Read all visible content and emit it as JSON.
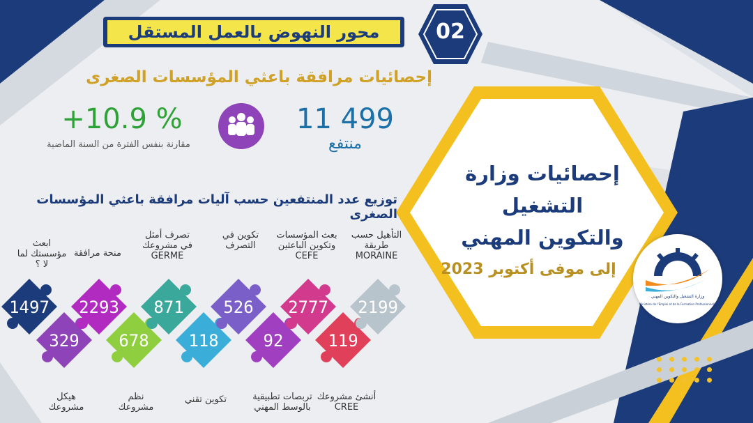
{
  "badge": "02",
  "title": "محور النهوض بالعمل المستقل",
  "subtitle": "إحصائيات مرافقة باعثي المؤسسات الصغرى",
  "growth": {
    "value": "+10.9 %",
    "note": "مقارنة بنفس الفترة من السنة الماضية"
  },
  "beneficiaries": {
    "count": "11 499",
    "label": "منتفع"
  },
  "distribution_title": "توزيع عدد المنتفعين حسب آليات مرافقة باعثي المؤسسات الصغرى",
  "pieces": [
    {
      "value": "1497",
      "label": "ابعث مؤسستك لما لا ؟",
      "color": "#1c3b7a",
      "row": "top"
    },
    {
      "value": "329",
      "label": "هيكل مشروعك",
      "color": "#8e44b8",
      "row": "bottom"
    },
    {
      "value": "2293",
      "label": "منحة مرافقة",
      "color": "#b12bc0",
      "row": "top"
    },
    {
      "value": "678",
      "label": "نظم مشروعك",
      "color": "#8fcf3f",
      "row": "bottom"
    },
    {
      "value": "871",
      "label": "تصرف أمثل في مشروعك GERME",
      "color": "#3aa89a",
      "row": "top"
    },
    {
      "value": "118",
      "label": "تكوين تقني",
      "color": "#3aaed8",
      "row": "bottom"
    },
    {
      "value": "526",
      "label": "تكوين في التصرف",
      "color": "#7a5fc8",
      "row": "top"
    },
    {
      "value": "92",
      "label": "تربصات تطبيقية بالوسط المهني",
      "color": "#a040c0",
      "row": "bottom"
    },
    {
      "value": "2777",
      "label": "بعث المؤسسات وتكوين الباعثين CEFE",
      "color": "#d23a8e",
      "row": "top"
    },
    {
      "value": "119",
      "label": "أنشئ مشروعك CREE",
      "color": "#e0405a",
      "row": "bottom"
    },
    {
      "value": "2199",
      "label": "التأهيل حسب طريقة MORAINE",
      "color": "#b8c4cc",
      "row": "top"
    }
  ],
  "hex": {
    "title_line1": "إحصائيات وزارة التشغيل",
    "title_line2": "والتكوين المهني",
    "date": "إلى موفى أكتوبر 2023"
  },
  "logo": {
    "name": "وزارة التشغيل والتكوين المهني",
    "name_fr": "Ministère de l'Emploi et de la Formation Professionnelle"
  },
  "colors": {
    "navy": "#1c3b7a",
    "yellow": "#f4c020",
    "green": "#2ea236",
    "blue": "#1c70a8",
    "gold": "#cfa127"
  }
}
